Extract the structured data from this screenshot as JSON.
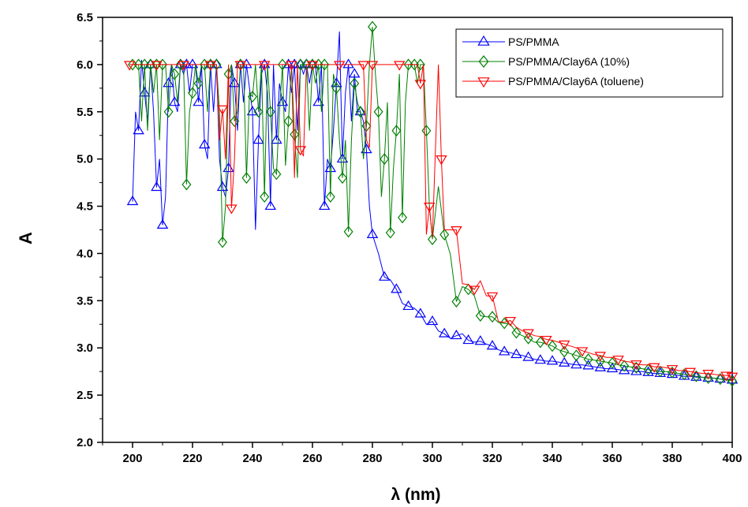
{
  "chart_data": {
    "type": "line",
    "xlabel": "λ (nm)",
    "ylabel": "A",
    "xlim": [
      190,
      400
    ],
    "ylim": [
      2.0,
      6.5
    ],
    "x_ticks": [
      200,
      220,
      240,
      260,
      280,
      300,
      320,
      340,
      360,
      380,
      400
    ],
    "y_ticks": [
      2.0,
      2.5,
      3.0,
      3.5,
      4.0,
      4.5,
      5.0,
      5.5,
      6.0,
      6.5
    ],
    "legend_position": "top-right",
    "grid": false,
    "series": [
      {
        "name": "PS/PMMA",
        "color": "#0000FF",
        "marker": "triangle-up",
        "x": [
          200,
          201,
          202,
          203,
          204,
          205,
          206,
          207,
          208,
          209,
          210,
          211,
          212,
          213,
          214,
          215,
          216,
          217,
          218,
          219,
          220,
          221,
          222,
          223,
          224,
          225,
          226,
          227,
          228,
          229,
          230,
          231,
          232,
          233,
          234,
          235,
          236,
          237,
          238,
          239,
          240,
          241,
          242,
          243,
          244,
          245,
          246,
          247,
          248,
          249,
          250,
          251,
          252,
          253,
          254,
          255,
          256,
          257,
          258,
          259,
          260,
          261,
          262,
          263,
          264,
          265,
          266,
          267,
          268,
          269,
          270,
          271,
          272,
          273,
          274,
          275,
          276,
          277,
          278,
          279,
          280,
          282,
          284,
          286,
          288,
          290,
          292,
          294,
          296,
          298,
          300,
          302,
          304,
          306,
          308,
          310,
          312,
          314,
          316,
          318,
          320,
          322,
          324,
          326,
          328,
          330,
          332,
          334,
          336,
          338,
          340,
          342,
          344,
          346,
          348,
          350,
          352,
          354,
          356,
          358,
          360,
          362,
          364,
          366,
          368,
          370,
          372,
          374,
          376,
          378,
          380,
          382,
          384,
          386,
          388,
          390,
          392,
          394,
          396,
          398,
          400
        ],
        "y": [
          4.55,
          5.5,
          5.3,
          6.05,
          5.7,
          5.4,
          6.0,
          5.5,
          4.7,
          5.0,
          4.3,
          4.6,
          5.8,
          6.0,
          5.6,
          5.5,
          6.0,
          5.9,
          6.0,
          5.7,
          6.0,
          6.0,
          5.6,
          6.0,
          5.15,
          5.0,
          6.0,
          5.5,
          6.0,
          5.0,
          4.7,
          4.6,
          4.9,
          6.0,
          5.8,
          5.3,
          6.0,
          5.6,
          6.0,
          5.75,
          5.5,
          4.25,
          5.2,
          5.9,
          6.0,
          5.7,
          4.5,
          6.0,
          5.2,
          5.8,
          5.6,
          5.5,
          6.0,
          5.7,
          6.0,
          5.3,
          6.0,
          5.9,
          6.0,
          5.8,
          6.0,
          6.0,
          5.6,
          6.0,
          4.5,
          5.0,
          4.9,
          5.3,
          5.8,
          6.35,
          5.0,
          5.7,
          6.0,
          5.4,
          5.9,
          5.5,
          5.5,
          5.4,
          5.1,
          4.5,
          4.2,
          4.0,
          3.75,
          3.72,
          3.62,
          3.47,
          3.44,
          3.42,
          3.36,
          3.25,
          3.28,
          3.18,
          3.15,
          3.1,
          3.13,
          3.15,
          3.08,
          3.06,
          3.07,
          3.04,
          3.02,
          2.98,
          2.96,
          2.95,
          2.93,
          2.92,
          2.9,
          2.88,
          2.87,
          2.86,
          2.86,
          2.85,
          2.84,
          2.83,
          2.82,
          2.82,
          2.81,
          2.8,
          2.79,
          2.78,
          2.78,
          2.77,
          2.76,
          2.76,
          2.75,
          2.75,
          2.74,
          2.73,
          2.73,
          2.72,
          2.72,
          2.71,
          2.7,
          2.7,
          2.69,
          2.69,
          2.68,
          2.68,
          2.67,
          2.67,
          2.66
        ]
      },
      {
        "name": "PS/PMMA/Clay6A (10%)",
        "color": "#008000",
        "marker": "diamond",
        "x": [
          200,
          201,
          202,
          203,
          204,
          205,
          206,
          207,
          208,
          209,
          210,
          211,
          212,
          213,
          214,
          215,
          216,
          217,
          218,
          219,
          220,
          221,
          222,
          223,
          224,
          225,
          226,
          227,
          228,
          229,
          230,
          231,
          232,
          233,
          234,
          235,
          236,
          237,
          238,
          239,
          240,
          241,
          242,
          243,
          244,
          245,
          246,
          247,
          248,
          249,
          250,
          251,
          252,
          253,
          254,
          255,
          256,
          257,
          258,
          259,
          260,
          261,
          262,
          263,
          264,
          265,
          266,
          267,
          268,
          269,
          270,
          271,
          272,
          273,
          274,
          275,
          276,
          277,
          278,
          279,
          280,
          281,
          282,
          283,
          284,
          285,
          286,
          287,
          288,
          289,
          290,
          291,
          292,
          293,
          294,
          295,
          296,
          297,
          298,
          299,
          300,
          302,
          304,
          306,
          308,
          310,
          312,
          314,
          316,
          318,
          320,
          322,
          324,
          326,
          328,
          330,
          332,
          334,
          336,
          338,
          340,
          342,
          344,
          346,
          348,
          350,
          352,
          354,
          356,
          358,
          360,
          362,
          364,
          366,
          368,
          370,
          372,
          374,
          376,
          378,
          380,
          382,
          384,
          386,
          388,
          390,
          392,
          394,
          396,
          398,
          400
        ],
        "y": [
          6.0,
          6.0,
          6.0,
          5.4,
          6.0,
          5.3,
          6.0,
          5.7,
          6.0,
          5.2,
          6.0,
          6.0,
          5.5,
          6.0,
          5.9,
          5.6,
          6.0,
          6.0,
          4.73,
          5.5,
          5.7,
          6.0,
          5.8,
          6.0,
          6.0,
          5.5,
          6.0,
          6.0,
          6.0,
          5.5,
          4.12,
          4.5,
          5.9,
          6.0,
          5.4,
          5.5,
          6.0,
          6.0,
          4.8,
          5.7,
          5.66,
          6.0,
          5.5,
          6.0,
          4.6,
          6.0,
          5.5,
          4.9,
          4.84,
          5.5,
          6.0,
          4.93,
          5.4,
          6.0,
          5.26,
          4.8,
          6.0,
          6.0,
          6.0,
          5.3,
          6.0,
          5.8,
          6.0,
          5.5,
          6.0,
          6.0,
          4.6,
          5.9,
          5.75,
          5.2,
          4.8,
          5.2,
          4.23,
          5.2,
          5.8,
          5.6,
          5.5,
          5.0,
          5.35,
          6.0,
          6.4,
          5.9,
          5.5,
          4.6,
          5.0,
          5.6,
          4.22,
          4.9,
          5.3,
          5.9,
          4.38,
          5.6,
          6.0,
          6.0,
          6.0,
          5.8,
          6.0,
          6.0,
          5.3,
          4.5,
          4.15,
          4.71,
          4.2,
          3.99,
          3.49,
          3.65,
          3.62,
          3.55,
          3.34,
          3.33,
          3.33,
          3.27,
          3.26,
          3.25,
          3.16,
          3.13,
          3.1,
          3.06,
          3.06,
          3.04,
          3.02,
          2.98,
          2.96,
          2.94,
          2.92,
          2.9,
          2.88,
          2.87,
          2.86,
          2.85,
          2.84,
          2.82,
          2.81,
          2.8,
          2.79,
          2.78,
          2.77,
          2.76,
          2.75,
          2.75,
          2.74,
          2.73,
          2.72,
          2.71,
          2.7,
          2.69,
          2.68,
          2.68,
          2.67,
          2.66,
          2.65
        ]
      },
      {
        "name": "PS/PMMA/Clay6A (toluene)",
        "color": "#FF0000",
        "marker": "triangle-down",
        "x": [
          199,
          202,
          205,
          208,
          211,
          214,
          217,
          220,
          223,
          226,
          228,
          229,
          230,
          231,
          232,
          233,
          234,
          235,
          236,
          238,
          241,
          244,
          247,
          250,
          253,
          254,
          255,
          256,
          257,
          258,
          260,
          263,
          266,
          269,
          272,
          275,
          277,
          278,
          279,
          280,
          283,
          286,
          289,
          292,
          295,
          296,
          297,
          298,
          299,
          300,
          302,
          303,
          304,
          306,
          308,
          310,
          312,
          314,
          316,
          318,
          320,
          322,
          324,
          326,
          328,
          330,
          332,
          334,
          336,
          338,
          340,
          342,
          344,
          346,
          348,
          350,
          352,
          354,
          356,
          358,
          360,
          362,
          364,
          366,
          368,
          370,
          372,
          374,
          376,
          378,
          380,
          382,
          384,
          386,
          388,
          390,
          392,
          394,
          396,
          398,
          400
        ],
        "y": [
          6.0,
          6.0,
          6.0,
          6.0,
          6.0,
          6.0,
          6.0,
          6.0,
          6.0,
          6.0,
          6.0,
          5.2,
          5.53,
          5.0,
          6.0,
          4.48,
          5.0,
          6.0,
          6.0,
          6.0,
          6.0,
          6.0,
          6.0,
          6.0,
          6.0,
          4.8,
          6.0,
          5.1,
          5.03,
          6.0,
          6.0,
          6.0,
          6.0,
          6.0,
          6.0,
          6.0,
          6.0,
          5.2,
          5.12,
          6.0,
          6.0,
          6.0,
          6.0,
          6.0,
          6.0,
          5.8,
          6.0,
          4.2,
          4.5,
          4.17,
          6.0,
          5.0,
          4.25,
          4.25,
          4.25,
          3.68,
          3.67,
          3.62,
          3.71,
          3.55,
          3.55,
          3.28,
          3.27,
          3.29,
          3.22,
          3.18,
          3.16,
          3.13,
          3.12,
          3.09,
          3.08,
          3.06,
          3.04,
          3.02,
          3.0,
          2.97,
          2.95,
          2.93,
          2.92,
          2.9,
          2.9,
          2.88,
          2.86,
          2.85,
          2.83,
          2.82,
          2.82,
          2.8,
          2.8,
          2.79,
          2.78,
          2.76,
          2.76,
          2.75,
          2.74,
          2.73,
          2.73,
          2.72,
          2.71,
          2.71,
          2.7
        ]
      }
    ]
  }
}
